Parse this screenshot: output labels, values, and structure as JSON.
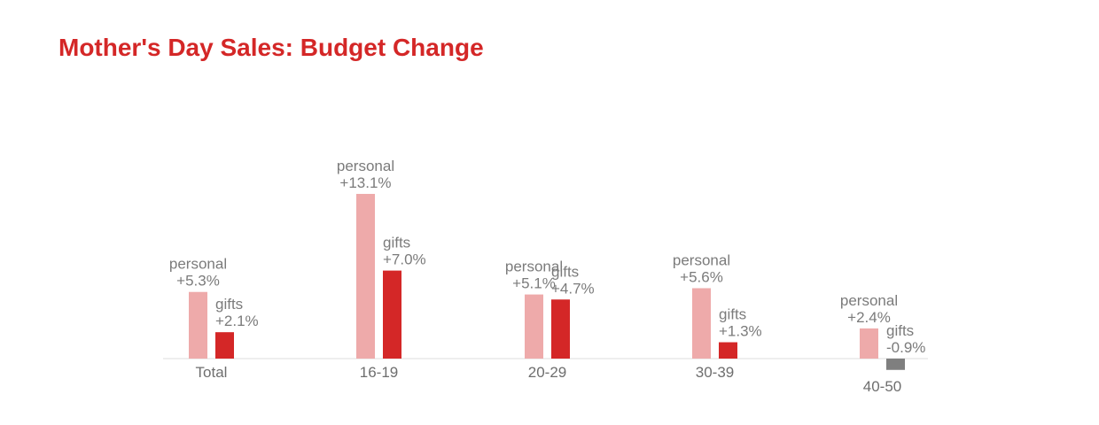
{
  "chart_data": {
    "type": "bar",
    "title": "Mother's Day Sales: Budget Change",
    "categories": [
      "Total",
      "16-19",
      "20-29",
      "30-39",
      "40-50"
    ],
    "series": [
      {
        "name": "personal",
        "values": [
          5.3,
          13.1,
          5.1,
          5.6,
          2.4
        ],
        "labels": [
          "+5.3%",
          "+13.1%",
          "+5.1%",
          "+5.6%",
          "+2.4%"
        ]
      },
      {
        "name": "gifts",
        "values": [
          2.1,
          7.0,
          4.7,
          1.3,
          -0.9
        ],
        "labels": [
          "+2.1%",
          "+7.0%",
          "+4.7%",
          "+1.3%",
          "-0.9%"
        ]
      }
    ],
    "xlabel": "",
    "ylabel": "",
    "grid": false,
    "legend": "none",
    "colors": {
      "title": "#d42727",
      "personal": "#eeaaaa",
      "gifts": "#d42727",
      "negative": "#7f7f7f",
      "axis": "#dddddd",
      "label": "#7b7b7b"
    }
  }
}
